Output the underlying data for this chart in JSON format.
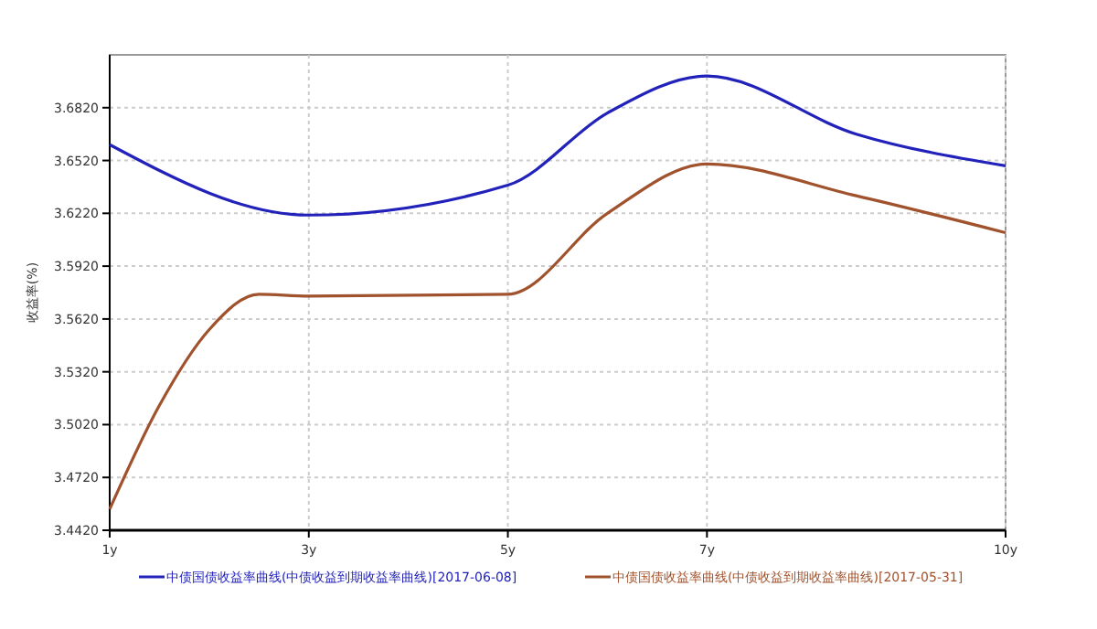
{
  "chart_data": {
    "type": "line",
    "ylabel": "收益率(%)",
    "xlim": [
      1,
      10
    ],
    "xticks": [
      {
        "value": 1,
        "label": "1y"
      },
      {
        "value": 3,
        "label": "3y"
      },
      {
        "value": 5,
        "label": "5y"
      },
      {
        "value": 7,
        "label": "7y"
      },
      {
        "value": 10,
        "label": "10y"
      }
    ],
    "ylim": [
      3.442,
      3.712
    ],
    "yticks": [
      {
        "value": 3.442,
        "label": "3.4420"
      },
      {
        "value": 3.472,
        "label": "3.4720"
      },
      {
        "value": 3.502,
        "label": "3.5020"
      },
      {
        "value": 3.532,
        "label": "3.5320"
      },
      {
        "value": 3.562,
        "label": "3.5620"
      },
      {
        "value": 3.592,
        "label": "3.5920"
      },
      {
        "value": 3.622,
        "label": "3.6220"
      },
      {
        "value": 3.652,
        "label": "3.6520"
      },
      {
        "value": 3.682,
        "label": "3.6820"
      }
    ],
    "grid": true,
    "legend": "bottom",
    "series": [
      {
        "name": "中债国债收益率曲线(中债收益到期收益率曲线)[2017-06-08]",
        "color": "#2222bb",
        "x": [
          1,
          3,
          5,
          6,
          7,
          8.5,
          10
        ],
        "values": [
          3.661,
          3.621,
          3.638,
          3.679,
          3.7,
          3.667,
          3.649
        ]
      },
      {
        "name": "中债国债收益率曲线(中债收益到期收益率曲线)[2017-05-31]",
        "color": "#a0522d",
        "x": [
          1,
          1.5,
          2,
          2.5,
          3,
          5,
          6,
          7,
          8.5,
          10
        ],
        "values": [
          3.454,
          3.513,
          3.556,
          3.576,
          3.575,
          3.576,
          3.622,
          3.65,
          3.632,
          3.611
        ]
      }
    ]
  }
}
